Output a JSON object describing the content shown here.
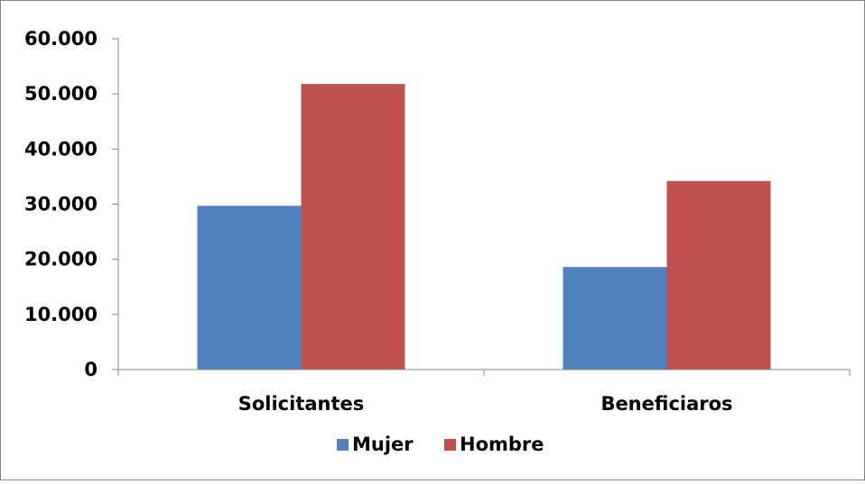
{
  "chart_data": {
    "type": "bar",
    "categories": [
      "Solicitantes",
      "Beneficiaros"
    ],
    "series": [
      {
        "name": "Mujer",
        "values": [
          29700,
          18600
        ],
        "color": "#4f81bd"
      },
      {
        "name": "Hombre",
        "values": [
          51800,
          34200
        ],
        "color": "#c0504d"
      }
    ],
    "y_ticks": [
      "0",
      "10.000",
      "20.000",
      "30.000",
      "40.000",
      "50.000",
      "60.000"
    ],
    "ylim": [
      0,
      60000
    ],
    "grid": false,
    "legend_position": "bottom"
  }
}
